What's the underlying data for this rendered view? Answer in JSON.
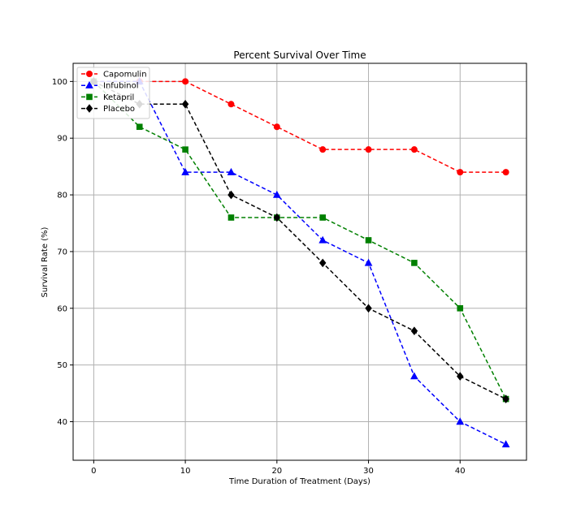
{
  "chart_data": {
    "type": "line",
    "title": "Percent Survival Over Time",
    "xlabel": "Time Duration of Treatment (Days)",
    "ylabel": "Survival Rate (%)",
    "x": [
      0,
      5,
      10,
      15,
      20,
      25,
      30,
      35,
      40,
      45
    ],
    "xlim": [
      -2.25,
      47.25
    ],
    "ylim": [
      33.2,
      103.2
    ],
    "xticks": [
      0,
      10,
      20,
      30,
      40
    ],
    "yticks": [
      40,
      50,
      60,
      70,
      80,
      90,
      100
    ],
    "grid": true,
    "legend_position": "upper-left",
    "series": [
      {
        "name": "Capomulin",
        "color": "#ff0000",
        "marker": "circle",
        "line_style": "dashed",
        "values": [
          100,
          100,
          100,
          96,
          92,
          88,
          88,
          88,
          84,
          84
        ]
      },
      {
        "name": "Infubinol",
        "color": "#0000ff",
        "marker": "triangle",
        "line_style": "dashed",
        "values": [
          100,
          100,
          84,
          84,
          80,
          72,
          68,
          48,
          40,
          36
        ]
      },
      {
        "name": "Ketapril",
        "color": "#008000",
        "marker": "square",
        "line_style": "dashed",
        "values": [
          100,
          92,
          88,
          76,
          76,
          76,
          72,
          68,
          60,
          44
        ]
      },
      {
        "name": "Placebo",
        "color": "#000000",
        "marker": "diamond",
        "line_style": "dashed",
        "values": [
          100,
          96,
          96,
          80,
          76,
          68,
          60,
          56,
          48,
          44
        ]
      }
    ]
  }
}
